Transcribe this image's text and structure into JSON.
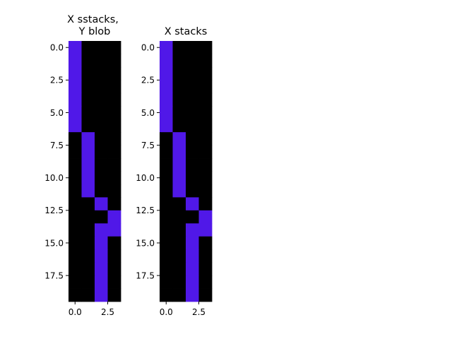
{
  "chart_data": [
    {
      "type": "heatmap",
      "title_lines": [
        "X sstacks,",
        "Y blob"
      ],
      "xlabel": "",
      "ylabel": "",
      "rows": 20,
      "cols": 4,
      "x_ticks": [
        0.0,
        2.5
      ],
      "x_tick_labels": [
        "0.0",
        "2.5"
      ],
      "y_ticks": [
        0.0,
        2.5,
        5.0,
        7.5,
        10.0,
        12.5,
        15.0,
        17.5
      ],
      "y_tick_labels": [
        "0.0",
        "2.5",
        "5.0",
        "7.5",
        "10.0",
        "12.5",
        "15.0",
        "17.5"
      ],
      "column_per_row": [
        0,
        0,
        0,
        0,
        0,
        0,
        0,
        1,
        1,
        1,
        1,
        1,
        2,
        3,
        [
          2,
          3
        ],
        2,
        2,
        2,
        2,
        2
      ],
      "colors": {
        "background": "#000000",
        "filled": "#5018e8"
      }
    },
    {
      "type": "heatmap",
      "title_lines": [
        "X stacks"
      ],
      "xlabel": "",
      "ylabel": "",
      "rows": 20,
      "cols": 4,
      "x_ticks": [
        0.0,
        2.5
      ],
      "x_tick_labels": [
        "0.0",
        "2.5"
      ],
      "y_ticks": [
        0.0,
        2.5,
        5.0,
        7.5,
        10.0,
        12.5,
        15.0,
        17.5
      ],
      "y_tick_labels": [
        "0.0",
        "2.5",
        "5.0",
        "7.5",
        "10.0",
        "12.5",
        "15.0",
        "17.5"
      ],
      "column_per_row": [
        0,
        0,
        0,
        0,
        0,
        0,
        0,
        1,
        1,
        1,
        1,
        1,
        2,
        3,
        [
          2,
          3
        ],
        2,
        2,
        2,
        2,
        2
      ],
      "colors": {
        "background": "#000000",
        "filled": "#5018e8"
      }
    }
  ]
}
